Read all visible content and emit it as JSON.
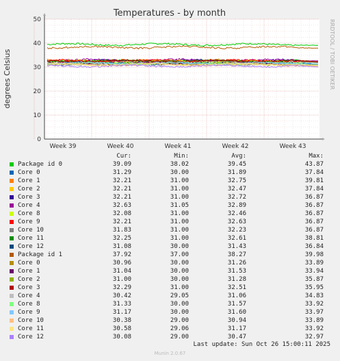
{
  "chart_data": {
    "type": "line",
    "title": "Temperatures - by month",
    "ylabel": "degrees Celsius",
    "ylim": [
      0,
      50
    ],
    "yticks": [
      "0",
      "10",
      "20",
      "30",
      "40",
      "50"
    ],
    "xticks": [
      "Week 39",
      "Week 40",
      "Week 41",
      "Week 42",
      "Week 43"
    ],
    "grid": true,
    "side_label": "RRDTOOL / TOBI OETIKER",
    "columns": [
      "Cur:",
      "Min:",
      "Avg:",
      "Max:"
    ],
    "series": [
      {
        "name": "Package id 0",
        "color": "#00cc00",
        "cur": "39.09",
        "min": "38.02",
        "avg": "39.45",
        "max": "43.87"
      },
      {
        "name": "Core 0",
        "color": "#0066b3",
        "cur": "31.29",
        "min": "30.00",
        "avg": "31.89",
        "max": "37.84"
      },
      {
        "name": "Core 1",
        "color": "#ff8000",
        "cur": "32.21",
        "min": "31.00",
        "avg": "32.75",
        "max": "39.81"
      },
      {
        "name": "Core 2",
        "color": "#ffcc00",
        "cur": "32.21",
        "min": "31.00",
        "avg": "32.47",
        "max": "37.84"
      },
      {
        "name": "Core 3",
        "color": "#330099",
        "cur": "32.21",
        "min": "31.00",
        "avg": "32.72",
        "max": "36.87"
      },
      {
        "name": "Core 4",
        "color": "#990099",
        "cur": "32.63",
        "min": "31.05",
        "avg": "32.89",
        "max": "36.87"
      },
      {
        "name": "Core 8",
        "color": "#ccff00",
        "cur": "32.08",
        "min": "31.00",
        "avg": "32.46",
        "max": "36.87"
      },
      {
        "name": "Core 9",
        "color": "#ff0000",
        "cur": "32.21",
        "min": "31.00",
        "avg": "32.63",
        "max": "36.87"
      },
      {
        "name": "Core 10",
        "color": "#808080",
        "cur": "31.83",
        "min": "31.00",
        "avg": "32.23",
        "max": "36.87"
      },
      {
        "name": "Core 11",
        "color": "#008f00",
        "cur": "32.25",
        "min": "31.00",
        "avg": "32.61",
        "max": "38.81"
      },
      {
        "name": "Core 12",
        "color": "#00487d",
        "cur": "31.08",
        "min": "30.00",
        "avg": "31.43",
        "max": "36.84"
      },
      {
        "name": "Package id 1",
        "color": "#b35a00",
        "cur": "37.92",
        "min": "37.00",
        "avg": "38.27",
        "max": "39.98"
      },
      {
        "name": "Core 0",
        "color": "#b38f00",
        "cur": "30.96",
        "min": "30.00",
        "avg": "31.26",
        "max": "33.89"
      },
      {
        "name": "Core 1",
        "color": "#6b006b",
        "cur": "31.04",
        "min": "30.00",
        "avg": "31.53",
        "max": "33.94"
      },
      {
        "name": "Core 2",
        "color": "#8fb300",
        "cur": "31.00",
        "min": "30.00",
        "avg": "31.28",
        "max": "35.87"
      },
      {
        "name": "Core 3",
        "color": "#b30000",
        "cur": "32.29",
        "min": "31.00",
        "avg": "32.51",
        "max": "35.95"
      },
      {
        "name": "Core 4",
        "color": "#bebebe",
        "cur": "30.42",
        "min": "29.05",
        "avg": "31.06",
        "max": "34.83"
      },
      {
        "name": "Core 8",
        "color": "#80ff80",
        "cur": "31.33",
        "min": "30.00",
        "avg": "31.57",
        "max": "33.92"
      },
      {
        "name": "Core 9",
        "color": "#80c9ff",
        "cur": "31.17",
        "min": "30.00",
        "avg": "31.60",
        "max": "33.97"
      },
      {
        "name": "Core 10",
        "color": "#ffc080",
        "cur": "30.38",
        "min": "29.00",
        "avg": "30.94",
        "max": "33.89"
      },
      {
        "name": "Core 11",
        "color": "#ffe680",
        "cur": "30.58",
        "min": "29.06",
        "avg": "31.17",
        "max": "33.92"
      },
      {
        "name": "Core 12",
        "color": "#aa80ff",
        "cur": "30.08",
        "min": "29.00",
        "avg": "30.47",
        "max": "32.97"
      }
    ]
  },
  "last_update": "Last update: Sun Oct 26 15:00:11 2025",
  "footer": "Munin 2.0.67"
}
